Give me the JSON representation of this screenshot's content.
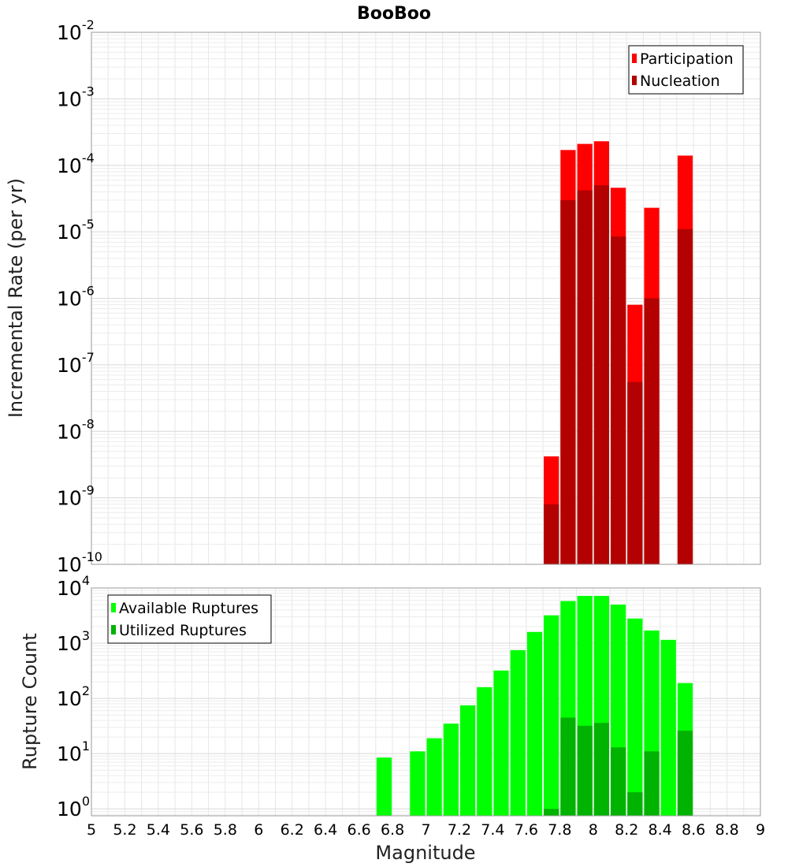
{
  "chart_data": [
    {
      "type": "bar",
      "title": "BooBoo",
      "xlabel": "",
      "ylabel": "Incremental Rate (per yr)",
      "xlim": [
        5,
        9
      ],
      "ylim": [
        1e-10,
        0.01
      ],
      "y_scale": "log",
      "ytick_exponents": [
        -10,
        -9,
        -8,
        -7,
        -6,
        -5,
        -4,
        -3,
        -2
      ],
      "grid": true,
      "legend": "top-right",
      "bar_width": 0.1,
      "x": [
        7.75,
        7.85,
        7.95,
        8.05,
        8.15,
        8.25,
        8.35,
        8.55
      ],
      "series": [
        {
          "name": "Participation",
          "color": "#ff0000",
          "values": [
            4.2e-09,
            0.00017,
            0.00021,
            0.00023,
            4.6e-05,
            8e-07,
            2.3e-05,
            0.00014
          ]
        },
        {
          "name": "Nucleation",
          "color": "#b30000",
          "values": [
            8e-10,
            3e-05,
            4.2e-05,
            5e-05,
            8.5e-06,
            5.5e-08,
            1e-06,
            1.1e-05
          ]
        }
      ]
    },
    {
      "type": "bar",
      "title": "",
      "xlabel": "Magnitude",
      "ylabel": "Rupture Count",
      "xlim": [
        5,
        9
      ],
      "ylim": [
        0.75,
        10000
      ],
      "y_scale": "log",
      "ytick_exponents": [
        0,
        1,
        2,
        3,
        4
      ],
      "xticks": [
        "5",
        "5.2",
        "5.4",
        "5.6",
        "5.8",
        "6",
        "6.2",
        "6.4",
        "6.6",
        "6.8",
        "7",
        "7.2",
        "7.4",
        "7.6",
        "7.8",
        "8",
        "8.2",
        "8.4",
        "8.6",
        "8.8",
        "9"
      ],
      "grid": true,
      "legend": "top-left",
      "bar_width": 0.1,
      "x": [
        6.75,
        6.95,
        7.05,
        7.15,
        7.25,
        7.35,
        7.45,
        7.55,
        7.65,
        7.75,
        7.85,
        7.95,
        8.05,
        8.15,
        8.25,
        8.35,
        8.45,
        8.55
      ],
      "series": [
        {
          "name": "Available Ruptures",
          "color": "#00ff00",
          "values": [
            8.5,
            11,
            19,
            35,
            75,
            160,
            320,
            750,
            1600,
            3200,
            5800,
            7200,
            7200,
            5000,
            2800,
            1700,
            1150,
            190
          ]
        },
        {
          "name": "Utilized Ruptures",
          "color": "#00b300",
          "values": [
            0,
            0,
            0,
            0,
            0,
            0,
            0,
            0,
            0,
            1,
            45,
            32,
            36,
            13,
            2,
            11,
            0,
            26
          ]
        }
      ]
    }
  ]
}
